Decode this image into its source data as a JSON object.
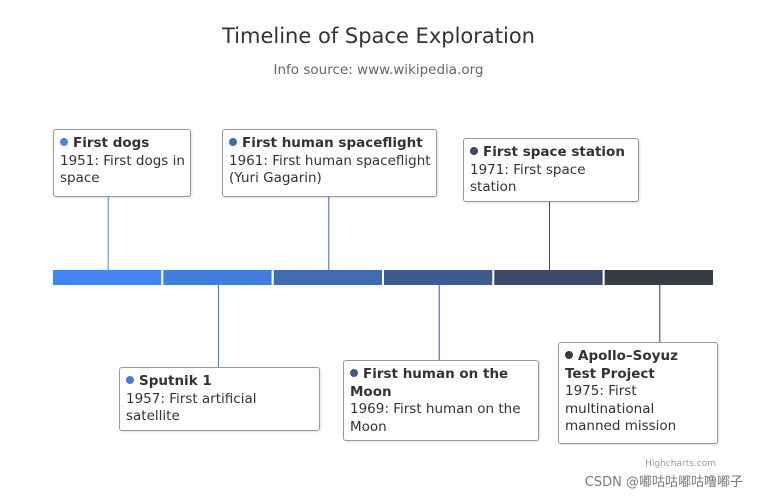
{
  "title": "Timeline of Space Exploration",
  "subtitle": "Info source: www.wikipedia.org",
  "credits": "Highcharts.com",
  "watermark": "CSDN @嘟咕咕嘟咕噜嘟子",
  "chart_data": {
    "type": "timeline",
    "title": "Timeline of Space Exploration",
    "subtitle": "Info source: www.wikipedia.org",
    "events": [
      {
        "name": "First dogs",
        "description": "1951: First dogs in space",
        "color": "#4185f3"
      },
      {
        "name": "Sputnik 1",
        "description": "1957: First artificial satellite",
        "color": "#427cdd"
      },
      {
        "name": "First human spaceflight",
        "description": "1961: First human spaceflight (Yuri Gagarin)",
        "color": "#406ab2"
      },
      {
        "name": "First human on the Moon",
        "description": "1969: First human on the Moon",
        "color": "#3e5a8e"
      },
      {
        "name": "First space station",
        "description": "1971: First space station",
        "color": "#3b4a68"
      },
      {
        "name": "Apollo–Soyuz Test Project",
        "description": "1975: First multinational manned mission",
        "color": "#363c46"
      }
    ]
  }
}
